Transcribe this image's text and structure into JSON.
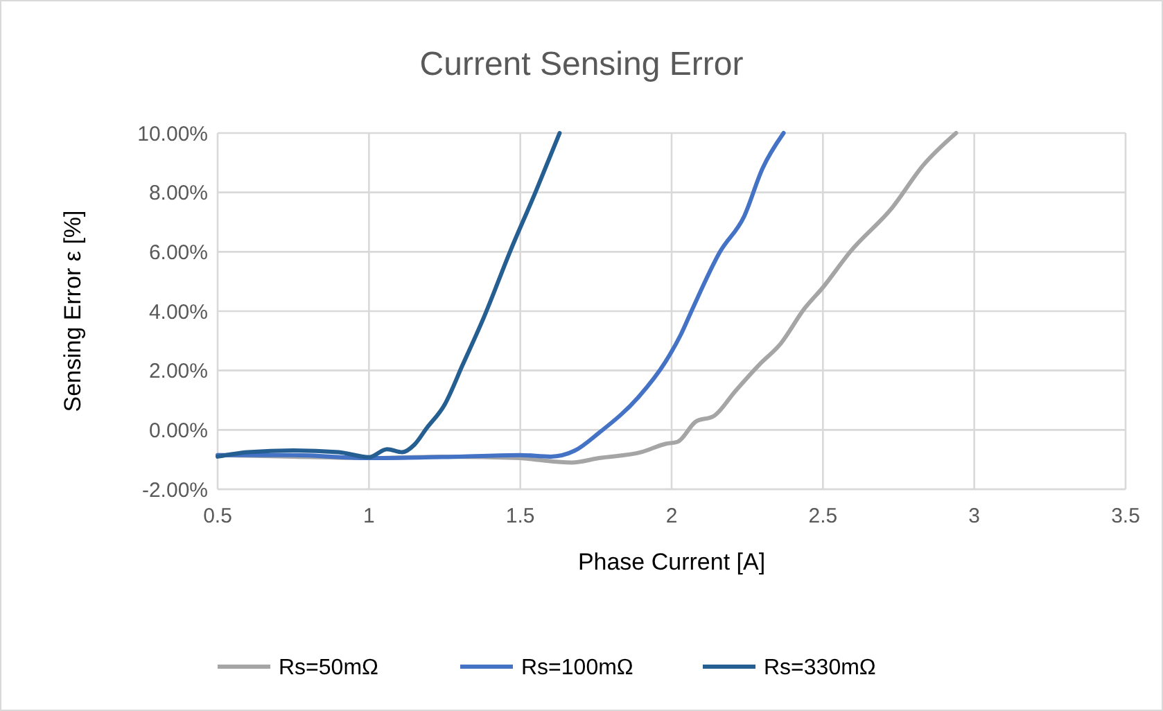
{
  "chart_data": {
    "type": "line",
    "title": "Current Sensing Error",
    "xlabel": "Phase Current [A]",
    "ylabel": "Sensing Error ε [%]",
    "xlim": [
      0.5,
      3.5
    ],
    "xticks": [
      0.5,
      1,
      1.5,
      2,
      2.5,
      3,
      3.5
    ],
    "ylim": [
      -2,
      10
    ],
    "yticks": [
      {
        "value": -2,
        "label": "-2.00%"
      },
      {
        "value": 0,
        "label": "0.00%"
      },
      {
        "value": 2,
        "label": "2.00%"
      },
      {
        "value": 4,
        "label": "4.00%"
      },
      {
        "value": 6,
        "label": "6.00%"
      },
      {
        "value": 8,
        "label": "8.00%"
      },
      {
        "value": 10,
        "label": "10.00%"
      }
    ],
    "grid": true,
    "legend": "bottom",
    "line_style": "solid",
    "marker": "none",
    "series": [
      {
        "name": "Rs=50mΩ",
        "color": "#a5a5a5",
        "x": [
          0.5,
          0.75,
          1.0,
          1.25,
          1.5,
          1.55,
          1.67,
          1.76,
          1.9,
          1.98,
          2.02,
          2.08,
          2.14,
          2.21,
          2.29,
          2.36,
          2.44,
          2.5,
          2.59,
          2.73,
          2.83,
          2.94
        ],
        "values": [
          -0.85,
          -0.9,
          -0.95,
          -0.9,
          -0.95,
          -1.0,
          -1.1,
          -0.95,
          -0.75,
          -0.47,
          -0.4,
          0.28,
          0.47,
          1.3,
          2.2,
          2.9,
          4.1,
          4.8,
          6.0,
          7.5,
          8.9,
          10
        ]
      },
      {
        "name": "Rs=100mΩ",
        "color": "#4472c4",
        "x": [
          0.5,
          0.75,
          1.0,
          1.3,
          1.5,
          1.6,
          1.68,
          1.76,
          1.89,
          1.98,
          2.03,
          2.07,
          2.16,
          2.24,
          2.3,
          2.37
        ],
        "values": [
          -0.85,
          -0.85,
          -0.95,
          -0.9,
          -0.85,
          -0.9,
          -0.7,
          -0.1,
          1.1,
          2.3,
          3.2,
          4.1,
          6.0,
          7.2,
          8.8,
          10
        ]
      },
      {
        "name": "Rs=330mΩ",
        "color": "#255e91",
        "x": [
          0.5,
          0.6,
          0.75,
          0.9,
          1.0,
          1.06,
          1.11,
          1.15,
          1.19,
          1.25,
          1.31,
          1.38,
          1.47,
          1.55,
          1.63
        ],
        "values": [
          -0.9,
          -0.75,
          -0.69,
          -0.75,
          -0.92,
          -0.65,
          -0.75,
          -0.5,
          0.05,
          0.85,
          2.2,
          3.8,
          6.1,
          8.0,
          10
        ]
      }
    ]
  }
}
